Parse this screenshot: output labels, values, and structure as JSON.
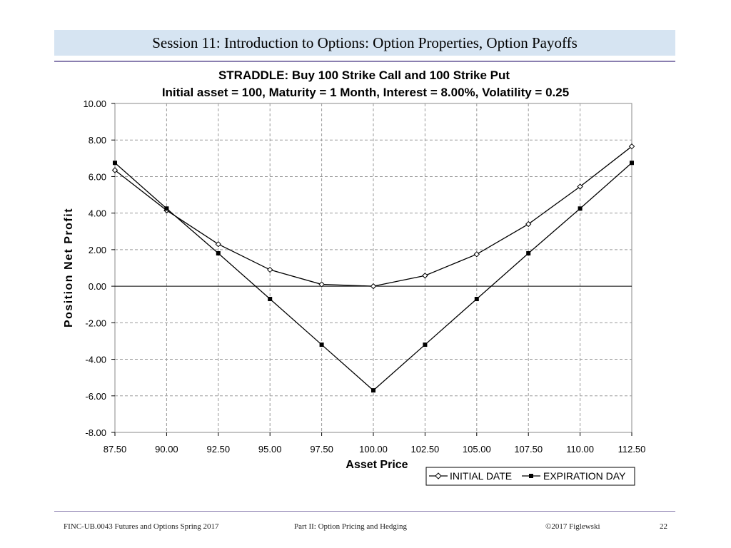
{
  "slide": {
    "header": "Session 11:  Introduction to Options: Option Properties, Option Payoffs",
    "footer_left": "FINC-UB.0043  Futures and Options  Spring 2017",
    "footer_center": "Part II: Option Pricing and Hedging",
    "footer_right": "©2017 Figlewski",
    "page_number": "22"
  },
  "colors": {
    "title_band": "#d6e4f2",
    "rule": "#8a7fb0",
    "series": "#000000"
  },
  "chart_data": {
    "type": "line",
    "title": "STRADDLE:  Buy 100 Strike Call and 100 Strike Put",
    "subtitle": "Initial asset = 100,  Maturity = 1 Month,  Interest = 8.00%,  Volatility = 0.25",
    "xlabel": "Asset Price",
    "ylabel": "Position Net Profit",
    "x": [
      87.5,
      90.0,
      92.5,
      95.0,
      97.5,
      100.0,
      102.5,
      105.0,
      107.5,
      110.0,
      112.5
    ],
    "x_tick_labels": [
      "87.50",
      "90.00",
      "92.50",
      "95.00",
      "97.50",
      "100.00",
      "102.50",
      "105.00",
      "107.50",
      "110.00",
      "112.50"
    ],
    "y_tick_values": [
      10,
      8,
      6,
      4,
      2,
      0,
      -2,
      -4,
      -6,
      -8
    ],
    "y_tick_labels": [
      "10.00",
      "8.00",
      "6.00",
      "4.00",
      "2.00",
      "0.00",
      "-2.00",
      "-4.00",
      "-6.00",
      "-8.00"
    ],
    "xlim": [
      87.5,
      112.5
    ],
    "ylim": [
      -8,
      10
    ],
    "grid": true,
    "legend_position": "bottom-right",
    "series": [
      {
        "name": "INITIAL DATE",
        "marker": "open-diamond",
        "values": [
          6.35,
          4.15,
          2.3,
          0.9,
          0.1,
          0.0,
          0.58,
          1.75,
          3.4,
          5.45,
          7.65
        ]
      },
      {
        "name": "EXPIRATION DAY",
        "marker": "filled-square",
        "values": [
          6.75,
          4.25,
          1.8,
          -0.7,
          -3.2,
          -5.7,
          -3.2,
          -0.7,
          1.8,
          4.25,
          6.75
        ]
      }
    ]
  }
}
